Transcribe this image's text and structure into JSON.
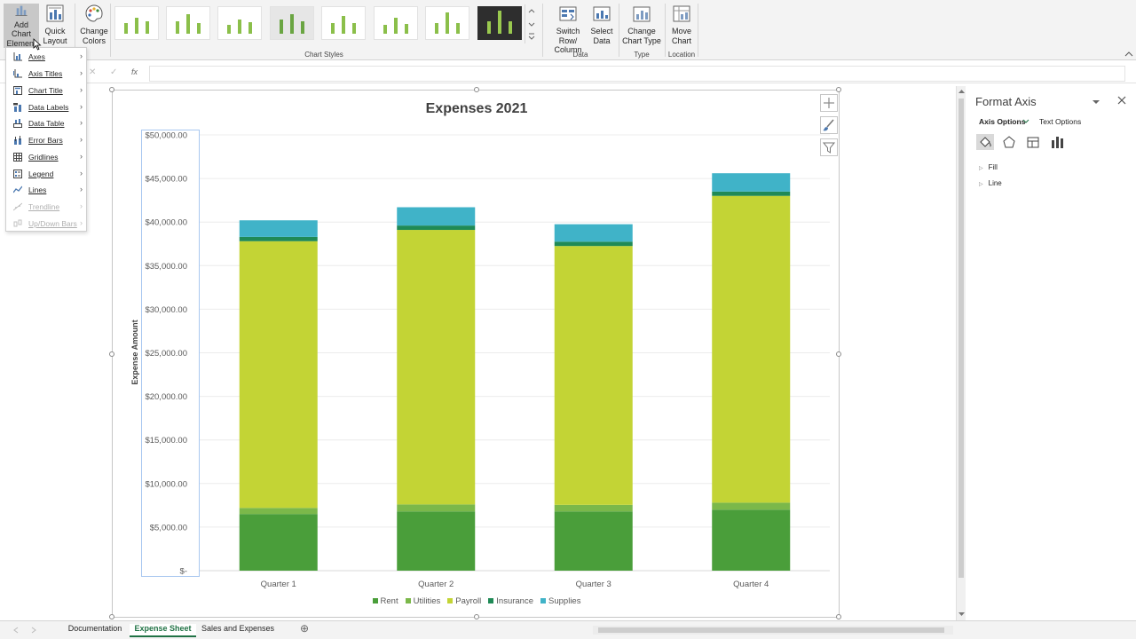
{
  "ribbon": {
    "add_chart_element": "Add Chart\nElement",
    "add_chart_line1": "Add Chart",
    "add_chart_line2": "Element",
    "quick_layout_line1": "Quick",
    "quick_layout_line2": "Layout",
    "change_colors_line1": "Change",
    "change_colors_line2": "Colors",
    "chart_styles_label": "Chart Styles",
    "switch_row_line1": "Switch Row/",
    "switch_row_line2": "Column",
    "select_data_line1": "Select",
    "select_data_line2": "Data",
    "data_group_label": "Data",
    "change_type_line1": "Change",
    "change_type_line2": "Chart Type",
    "type_group_label": "Type",
    "move_chart_line1": "Move",
    "move_chart_line2": "Chart",
    "location_group_label": "Location"
  },
  "formula_bar": {
    "cancel_symbol": "✕",
    "enter_symbol": "✓",
    "fx_symbol": "fx",
    "value": ""
  },
  "chart_menu": {
    "items": [
      {
        "label": "Axes",
        "disabled": false
      },
      {
        "label": "Axis Titles",
        "disabled": false
      },
      {
        "label": "Chart Title",
        "disabled": false
      },
      {
        "label": "Data Labels",
        "disabled": false
      },
      {
        "label": "Data Table",
        "disabled": false
      },
      {
        "label": "Error Bars",
        "disabled": false
      },
      {
        "label": "Gridlines",
        "disabled": false
      },
      {
        "label": "Legend",
        "disabled": false
      },
      {
        "label": "Lines",
        "disabled": false
      },
      {
        "label": "Trendline",
        "disabled": true
      },
      {
        "label": "Up/Down Bars",
        "disabled": true
      }
    ]
  },
  "format_pane": {
    "title": "Format Axis",
    "tab_axis_options": "Axis Options",
    "tab_text_options": "Text Options",
    "sections": [
      "Fill",
      "Line"
    ]
  },
  "sheet_tabs": {
    "tabs": [
      "Documentation",
      "Expense Sheet",
      "Sales and Expenses"
    ],
    "active": "Expense Sheet",
    "add_symbol": "⊕"
  },
  "colors": {
    "rent": "#4a9e3a",
    "utilities": "#7bb84a",
    "payroll": "#c3d435",
    "insurance": "#1f8a56",
    "supplies": "#40b3c8",
    "excel_green": "#207245"
  },
  "chart_data": {
    "type": "bar",
    "stacked": true,
    "title": "Expenses 2021",
    "xlabel": "",
    "ylabel": "Expense Amount",
    "ylim": [
      0,
      50000
    ],
    "yticks": [
      0,
      5000,
      10000,
      15000,
      20000,
      25000,
      30000,
      35000,
      40000,
      45000,
      50000
    ],
    "ytick_labels": [
      "$-",
      "$5,000.00",
      "$10,000.00",
      "$15,000.00",
      "$20,000.00",
      "$25,000.00",
      "$30,000.00",
      "$35,000.00",
      "$40,000.00",
      "$45,000.00",
      "$50,000.00"
    ],
    "categories": [
      "Quarter 1",
      "Quarter 2",
      "Quarter 3",
      "Quarter 4"
    ],
    "legend_position": "bottom",
    "grid": true,
    "series": [
      {
        "name": "Rent",
        "values": [
          6500,
          6800,
          6800,
          7000
        ]
      },
      {
        "name": "Utilities",
        "values": [
          700,
          800,
          750,
          800
        ]
      },
      {
        "name": "Payroll",
        "values": [
          30600,
          31500,
          29700,
          35200
        ]
      },
      {
        "name": "Insurance",
        "values": [
          500,
          500,
          500,
          500
        ]
      },
      {
        "name": "Supplies",
        "values": [
          1900,
          2100,
          2000,
          2100
        ]
      }
    ]
  }
}
